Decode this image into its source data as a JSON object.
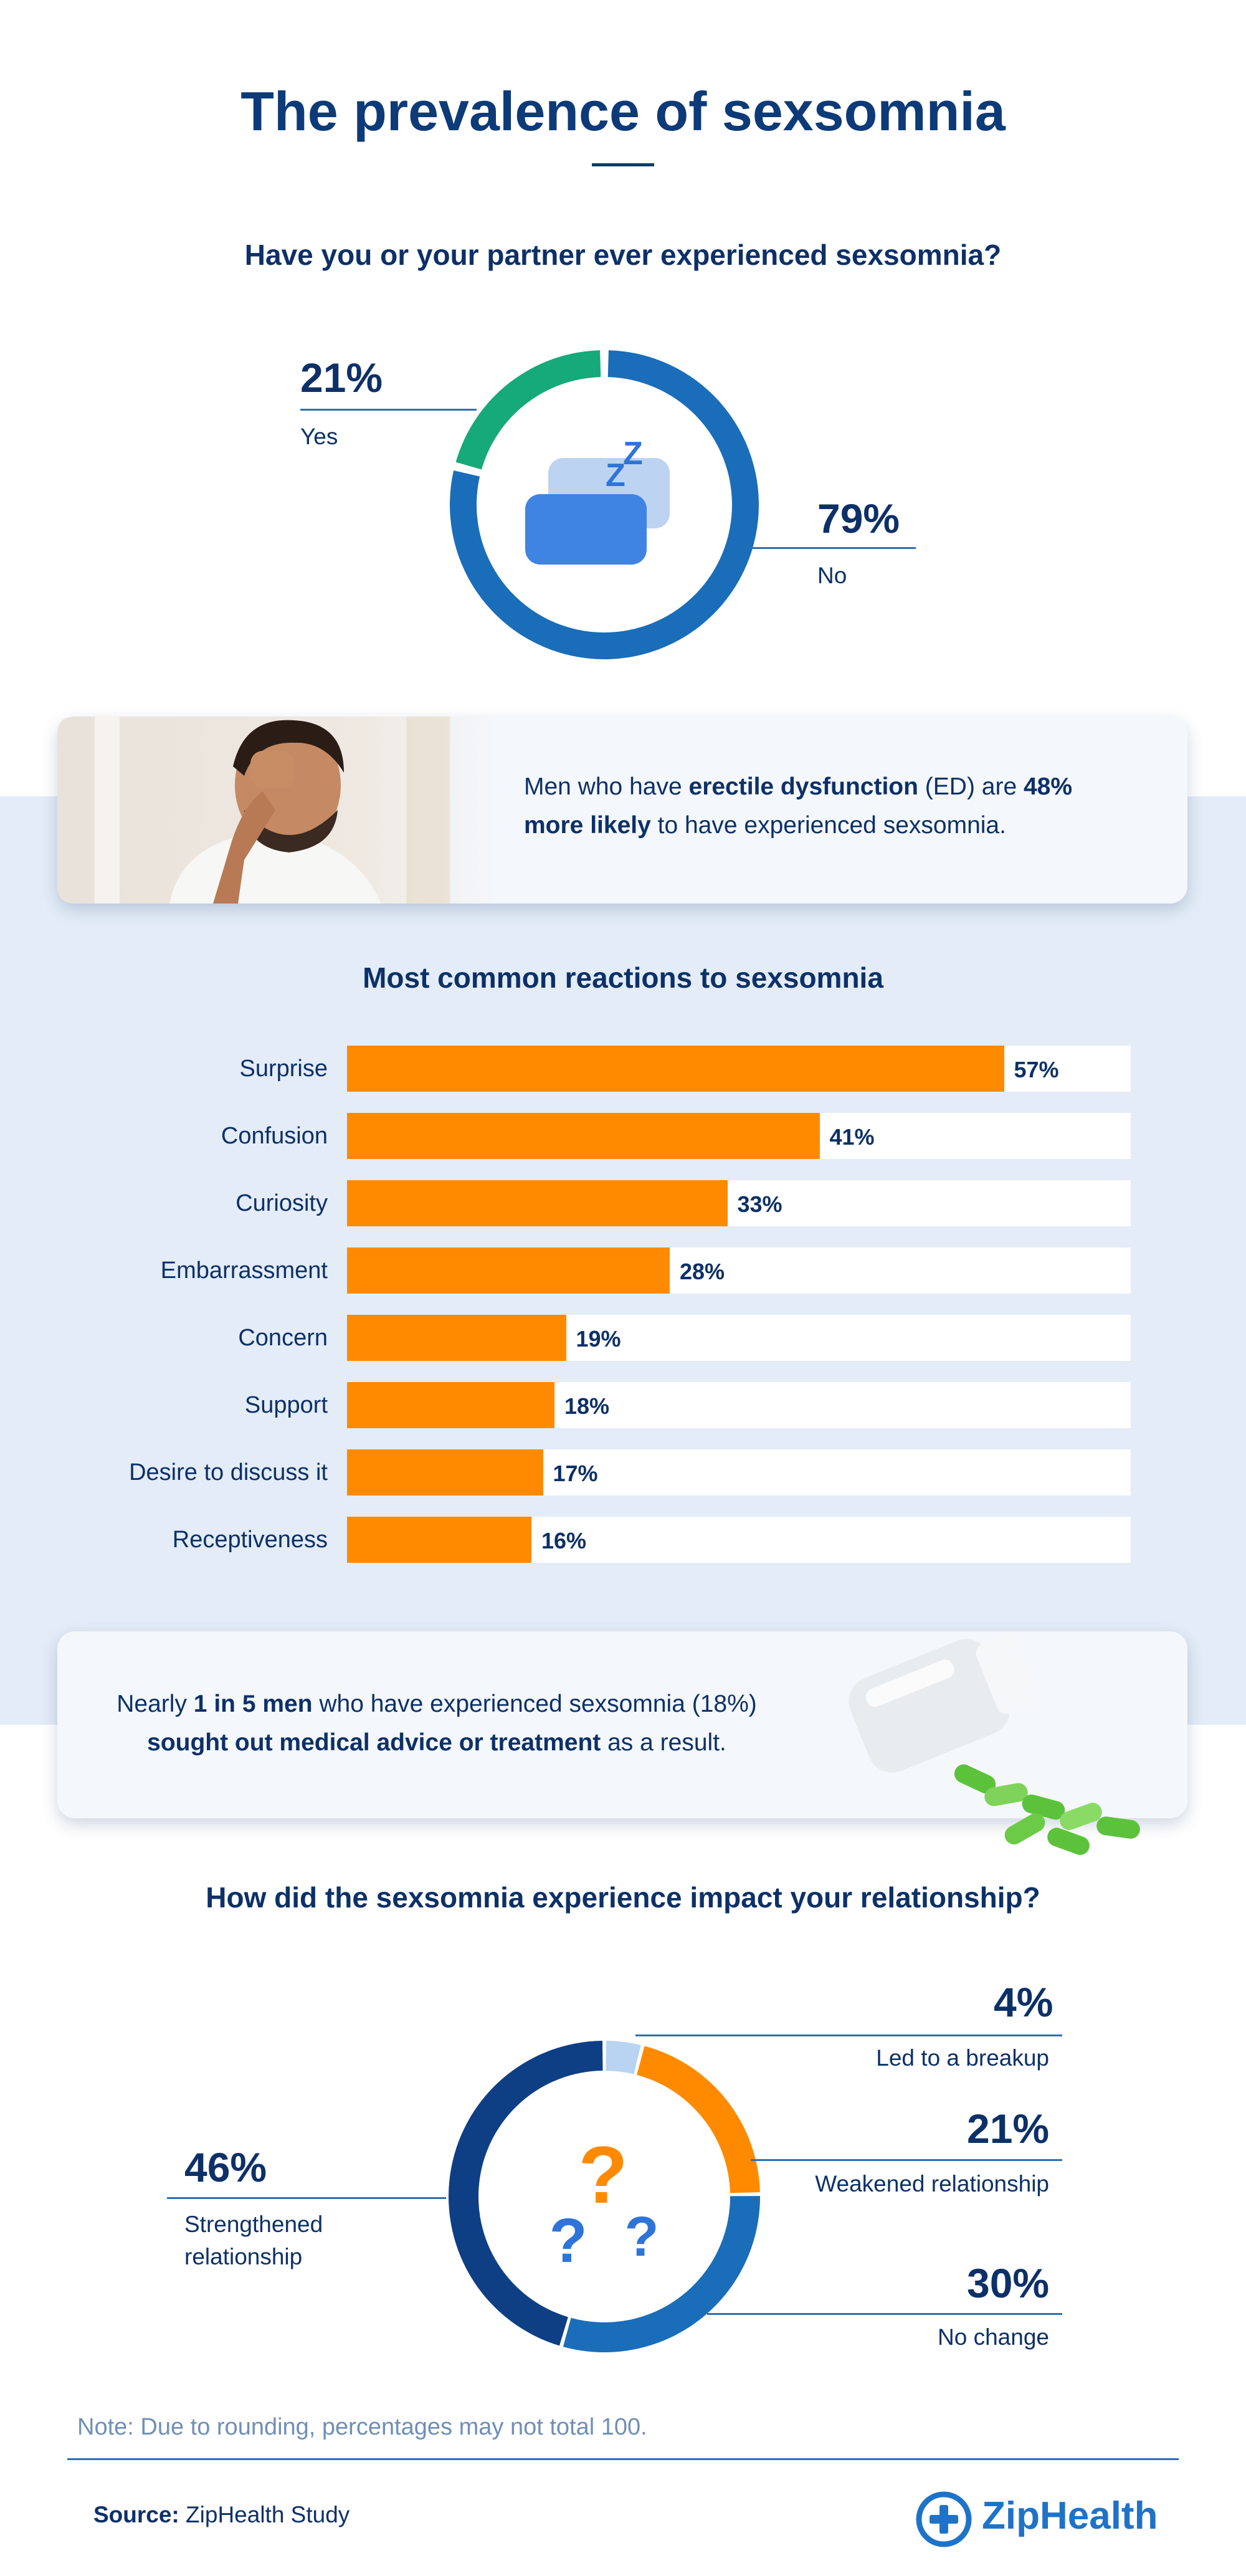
{
  "title": "The prevalence of sexsomnia",
  "experience": {
    "question": "Have you or your partner ever experienced sexsomnia?",
    "yes_pct": "21%",
    "yes_label": "Yes",
    "no_pct": "79%",
    "no_label": "No",
    "zz": "Z"
  },
  "ed_card": {
    "t1": "Men who have ",
    "b1": "erectile dysfunction",
    "t2": " (ED) are ",
    "b2": "48%",
    "b3": "more likely",
    "t3": " to have experienced sexsomnia."
  },
  "reactions": {
    "title": "Most common reactions to sexsomnia"
  },
  "treatment_card": {
    "t1": "Nearly ",
    "b1": "1 in 5 men",
    "t2": " who have experienced sexsomnia (18%)",
    "b2": "sought out medical advice or treatment",
    "t3": " as a result."
  },
  "relationship": {
    "question": "How did the sexsomnia experience impact your relationship?",
    "breakup_pct": "4%",
    "breakup_label": "Led to a breakup",
    "weakened_pct": "21%",
    "weakened_label": "Weakened relationship",
    "nochange_pct": "30%",
    "nochange_label": "No change",
    "strengthened_pct": "46%",
    "strengthened_label_1": "Strengthened",
    "strengthened_label_2": "relationship",
    "qmark": "?"
  },
  "note": "Note: Due to rounding, percentages may not total 100.",
  "source_label": "Source:",
  "source_value": " ZipHealth Study",
  "brand": "ZipHealth",
  "colors": {
    "navy": "#0d3068",
    "donut_blue": "#1a6db9",
    "donut_green": "#16a97a",
    "orange": "#ff8a00",
    "dark_navy": "#0e3f85",
    "light_blue": "#b9d3f2"
  },
  "chart_data": [
    {
      "type": "pie",
      "title": "Have you or your partner ever experienced sexsomnia?",
      "categories": [
        "Yes",
        "No"
      ],
      "values": [
        21,
        79
      ],
      "unit": "%"
    },
    {
      "type": "bar",
      "title": "Most common reactions to sexsomnia",
      "orientation": "horizontal",
      "categories": [
        "Surprise",
        "Confusion",
        "Curiosity",
        "Embarrassment",
        "Concern",
        "Support",
        "Desire to discuss it",
        "Receptiveness"
      ],
      "values": [
        57,
        41,
        33,
        28,
        19,
        18,
        17,
        16
      ],
      "unit": "%",
      "xlim": [
        0,
        68
      ]
    },
    {
      "type": "pie",
      "title": "How did the sexsomnia experience impact your relationship?",
      "categories": [
        "Led to a breakup",
        "Weakened relationship",
        "No change",
        "Strengthened relationship"
      ],
      "values": [
        4,
        21,
        30,
        46
      ],
      "unit": "%"
    }
  ]
}
